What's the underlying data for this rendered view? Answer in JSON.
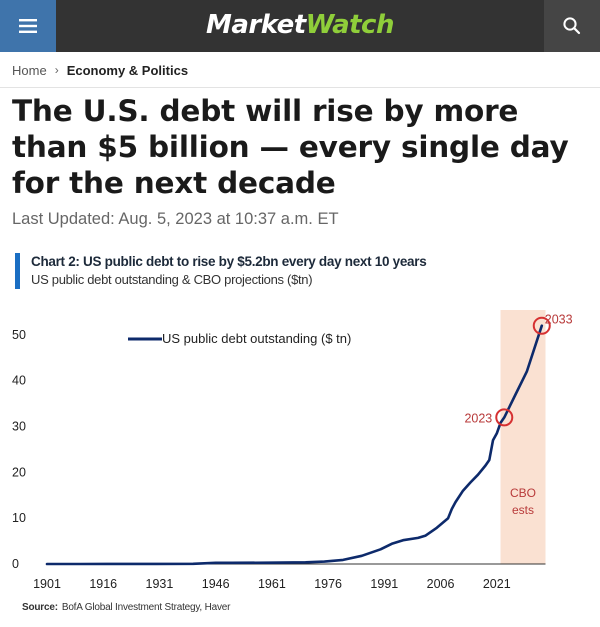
{
  "header": {
    "logo_part1": "Market",
    "logo_part2": "Watch",
    "brand_color": "#8fce3a",
    "menu_color": "#3f74ab",
    "menu_icon": "hamburger-menu-icon",
    "search_icon": "search-icon"
  },
  "breadcrumb": {
    "home": "Home",
    "separator": "›",
    "section": "Economy & Politics"
  },
  "article": {
    "headline": "The U.S. debt will rise by more than $5 billion — every single day for the next decade",
    "updated": "Last Updated: Aug. 5, 2023 at 10:37 a.m. ET"
  },
  "chart_data": {
    "type": "line",
    "title": "Chart 2: US public debt to rise by $5.2bn every day next 10 years",
    "subtitle": "US public debt outstanding & CBO projections ($tn)",
    "source_label": "Source:",
    "source_text": "BofA Global Investment Strategy, Haver",
    "series": [
      {
        "name": "US public debt outstanding ($ tn)",
        "color": "#0d2a6b",
        "points": [
          [
            1901,
            0.0
          ],
          [
            1910,
            0.0
          ],
          [
            1917,
            0.03
          ],
          [
            1919,
            0.025
          ],
          [
            1930,
            0.017
          ],
          [
            1940,
            0.05
          ],
          [
            1946,
            0.27
          ],
          [
            1950,
            0.26
          ],
          [
            1960,
            0.29
          ],
          [
            1970,
            0.37
          ],
          [
            1975,
            0.53
          ],
          [
            1980,
            0.9
          ],
          [
            1985,
            1.8
          ],
          [
            1990,
            3.2
          ],
          [
            1993,
            4.4
          ],
          [
            1996,
            5.2
          ],
          [
            2000,
            5.7
          ],
          [
            2002,
            6.2
          ],
          [
            2005,
            7.9
          ],
          [
            2008,
            10.0
          ],
          [
            2009,
            12.0
          ],
          [
            2010,
            13.5
          ],
          [
            2012,
            16.0
          ],
          [
            2014,
            17.8
          ],
          [
            2016,
            19.5
          ],
          [
            2018,
            21.5
          ],
          [
            2019,
            22.7
          ],
          [
            2020,
            27.0
          ],
          [
            2021,
            28.5
          ],
          [
            2022,
            30.8
          ],
          [
            2023,
            32.0
          ],
          [
            2026,
            37.0
          ],
          [
            2029,
            42.0
          ],
          [
            2033,
            52.0
          ]
        ]
      }
    ],
    "x_ticks": [
      1901,
      1916,
      1931,
      1946,
      1961,
      1976,
      1991,
      2006,
      2021
    ],
    "y_ticks": [
      0,
      10,
      20,
      30,
      40,
      50
    ],
    "xlim": [
      1901,
      2036
    ],
    "ylim": [
      0,
      55
    ],
    "shaded_region": {
      "from": 2022,
      "to": 2034,
      "label_line1": "CBO",
      "label_line2": "ests",
      "color": "#fae1d2"
    },
    "annotations": [
      {
        "label": "2023",
        "x": 2023,
        "y": 32.0,
        "label_side": "left"
      },
      {
        "label": "2033",
        "x": 2033,
        "y": 52.0,
        "label_side": "right"
      }
    ],
    "legend_position": "top-left",
    "highlight_color": "#d63031",
    "label_color": "#b83a3a",
    "grid": false
  }
}
